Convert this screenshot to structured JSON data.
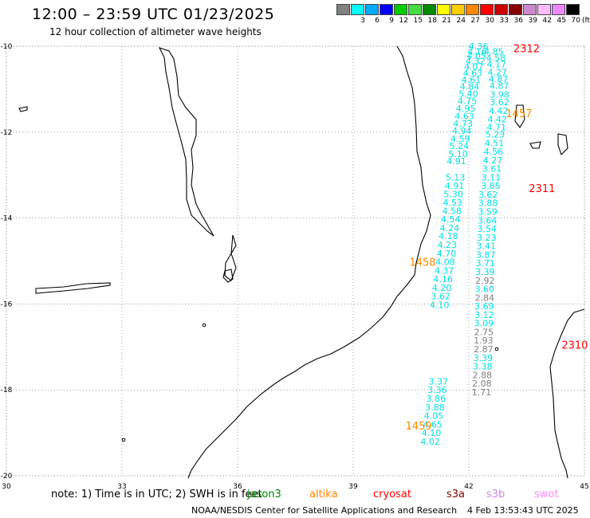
{
  "header": {
    "title": "12:00 – 23:59 UTC 01/23/2025",
    "subtitle": "12 hour collection of altimeter wave heights"
  },
  "colorbar": {
    "colors": [
      "#808080",
      "#00ffff",
      "#00aaff",
      "#0000ff",
      "#00cc00",
      "#44dd44",
      "#008800",
      "#ffff00",
      "#ffcc00",
      "#ff8800",
      "#ff0000",
      "#cc0000",
      "#880000",
      "#cc88cc",
      "#ffbbff",
      "#ee88ff",
      "#000000"
    ],
    "labels": [
      "",
      "3",
      "6",
      "9",
      "12",
      "15",
      "18",
      "21",
      "24",
      "27",
      "30",
      "33",
      "36",
      "39",
      "42",
      "45",
      "70"
    ],
    "unit": "(ft)"
  },
  "map": {
    "lon_range": [
      30,
      45
    ],
    "lat_range": [
      -20,
      -10
    ],
    "lon_ticks": [
      "30",
      "33",
      "36",
      "39",
      "42",
      "45"
    ],
    "lat_ticks": [
      "-10",
      "-12",
      "-14",
      "-16",
      "-18",
      "-20"
    ],
    "grid": "dotted",
    "coastline_color": "#000000",
    "tracks": [
      {
        "label": "2312",
        "label_color": "#ff0000",
        "label_lon": 43.5,
        "label_lat": -10.05,
        "points": [
          [
            42.25,
            -10.0,
            "4.36"
          ],
          [
            42.22,
            -10.12,
            "4.16"
          ],
          [
            42.2,
            -10.22,
            "4.05"
          ],
          [
            42.17,
            -10.34,
            "4.32"
          ],
          [
            42.13,
            -10.47,
            "4.07"
          ],
          [
            42.1,
            -10.62,
            "4.63"
          ],
          [
            42.06,
            -10.78,
            "4.61"
          ],
          [
            42.02,
            -10.94,
            "4.84"
          ],
          [
            41.99,
            -11.1,
            "5.40"
          ],
          [
            41.96,
            -11.27,
            "4.75"
          ],
          [
            41.92,
            -11.45,
            "4.95"
          ],
          [
            41.89,
            -11.62,
            "4.63"
          ],
          [
            41.85,
            -11.8,
            "4.73"
          ],
          [
            41.82,
            -11.97,
            "4.94"
          ],
          [
            41.78,
            -12.15,
            "4.59"
          ],
          [
            41.75,
            -12.32,
            "5.24"
          ],
          [
            41.72,
            -12.5,
            "5.10"
          ],
          [
            41.68,
            -12.67,
            "4.91"
          ]
        ]
      },
      {
        "label": "2311",
        "label_color": "#ff0000",
        "label_lon": 43.9,
        "label_lat": -13.3,
        "points": [
          [
            42.65,
            -10.12,
            "4.85"
          ],
          [
            42.7,
            -10.27,
            "4.58"
          ],
          [
            42.72,
            -10.42,
            "4.17"
          ],
          [
            42.74,
            -10.6,
            "4.27"
          ],
          [
            42.77,
            -10.76,
            "4.87"
          ],
          [
            42.79,
            -10.92,
            "4.87"
          ],
          [
            42.8,
            -11.12,
            "3.98"
          ],
          [
            42.8,
            -11.3,
            "3.62"
          ],
          [
            42.77,
            -11.5,
            "4.42"
          ],
          [
            42.74,
            -11.7,
            "4.42"
          ],
          [
            42.72,
            -11.88,
            "4.71"
          ],
          [
            42.68,
            -12.05,
            "5.23"
          ],
          [
            42.66,
            -12.25,
            "4.51"
          ],
          [
            42.64,
            -12.45,
            "4.56"
          ],
          [
            42.62,
            -12.65,
            "4.27"
          ],
          [
            42.6,
            -12.85,
            "3.61"
          ],
          [
            42.58,
            -13.05,
            "3.11"
          ],
          [
            42.57,
            -13.25,
            "3.85"
          ]
        ]
      },
      {
        "label": "1458",
        "label_color": "#ff8800",
        "label_lon": 40.8,
        "label_lat": -15.02,
        "points": [
          [
            41.65,
            -13.05,
            "5.13"
          ],
          [
            41.63,
            -13.25,
            "4.91"
          ],
          [
            41.6,
            -13.44,
            "5.30"
          ],
          [
            41.58,
            -13.64,
            "4.53"
          ],
          [
            41.56,
            -13.83,
            "4.58"
          ],
          [
            41.53,
            -14.03,
            "4.54"
          ],
          [
            41.5,
            -14.23,
            "4.24"
          ],
          [
            41.47,
            -14.42,
            "4.18"
          ],
          [
            41.44,
            -14.62,
            "4.23"
          ],
          [
            41.42,
            -14.82,
            "4.70"
          ],
          [
            41.39,
            -15.02,
            "4.08"
          ],
          [
            41.36,
            -15.22,
            "4.37"
          ],
          [
            41.33,
            -15.42,
            "4.16"
          ],
          [
            41.3,
            -15.62,
            "4.20"
          ],
          [
            41.27,
            -15.82,
            "3.62"
          ],
          [
            41.24,
            -16.02,
            "4.10"
          ]
        ]
      },
      {
        "label": "1459",
        "label_color": "#ff8800",
        "label_lon": 40.7,
        "label_lat": -18.83,
        "points": [
          [
            41.21,
            -17.8,
            "3.37"
          ],
          [
            41.18,
            -18.0,
            "3.36"
          ],
          [
            41.15,
            -18.2,
            "3.86"
          ],
          [
            41.12,
            -18.4,
            "3.88"
          ],
          [
            41.09,
            -18.6,
            "4.05"
          ],
          [
            41.06,
            -18.8,
            "4.65"
          ],
          [
            41.03,
            -19.0,
            "4.10"
          ],
          [
            41.0,
            -19.2,
            "4.02"
          ]
        ]
      },
      {
        "label": "2310",
        "label_color": "#ff0000",
        "label_lon": 44.75,
        "label_lat": -16.95,
        "points": [
          [
            42.5,
            -13.45,
            "3.62"
          ],
          [
            42.5,
            -13.65,
            "3.88"
          ],
          [
            42.49,
            -13.85,
            "3.59"
          ],
          [
            42.48,
            -14.05,
            "3.64"
          ],
          [
            42.47,
            -14.25,
            "3.54"
          ],
          [
            42.46,
            -14.45,
            "3.23"
          ],
          [
            42.45,
            -14.65,
            "3.41"
          ],
          [
            42.44,
            -14.85,
            "3.87"
          ],
          [
            42.43,
            -15.05,
            "3.71"
          ],
          [
            42.42,
            -15.25,
            "3.39"
          ],
          [
            42.42,
            -15.45,
            "2.92"
          ],
          [
            42.41,
            -15.65,
            "3.60"
          ],
          [
            42.41,
            -15.85,
            "2.84"
          ],
          [
            42.4,
            -16.05,
            "3.69"
          ],
          [
            42.4,
            -16.25,
            "3.12"
          ],
          [
            42.39,
            -16.45,
            "3.09"
          ],
          [
            42.39,
            -16.65,
            "2.75"
          ],
          [
            42.38,
            -16.85,
            "1.93"
          ],
          [
            42.38,
            -17.05,
            "2.87"
          ],
          [
            42.37,
            -17.25,
            "3.39"
          ],
          [
            42.36,
            -17.45,
            "3.38"
          ],
          [
            42.35,
            -17.65,
            "2.88"
          ],
          [
            42.34,
            -17.85,
            "2.08"
          ],
          [
            42.33,
            -18.05,
            "1.71"
          ]
        ]
      },
      {
        "label": "1457",
        "label_color": "#ff8800",
        "label_lon": 43.3,
        "label_lat": -11.56,
        "points": []
      }
    ]
  },
  "footer": {
    "note": "note:  1) Time is in UTC;  2) SWH is in feet",
    "satellites": [
      {
        "name": "jason3",
        "color": "#008800"
      },
      {
        "name": "altika",
        "color": "#ff8800"
      },
      {
        "name": "cryosat",
        "color": "#ff0000"
      },
      {
        "name": "s3a",
        "color": "#880000"
      },
      {
        "name": "s3b",
        "color": "#cc88ee"
      },
      {
        "name": "swot",
        "color": "#ff88ff"
      }
    ],
    "credit": "NOAA/NESDIS Center for Satellite Applications and Research",
    "timestamp": "4 Feb 13:53:43 UTC 2025"
  }
}
